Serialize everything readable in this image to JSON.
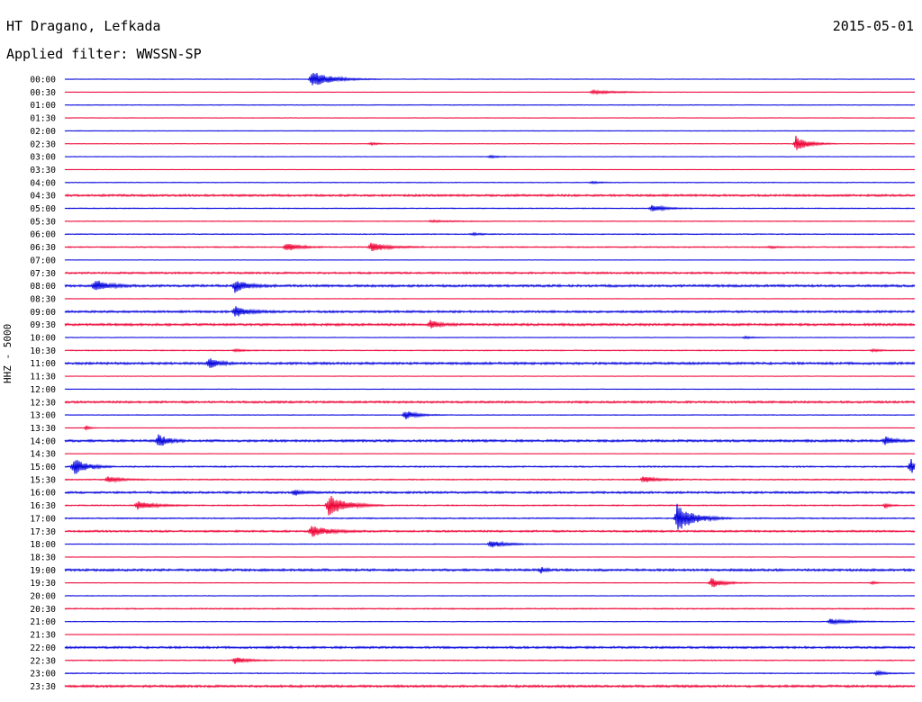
{
  "header": {
    "station": "HT Dragano, Lefkada",
    "date": "2015-05-01",
    "filter_label": "Applied filter: WWSSN-SP"
  },
  "channel_label": "HHZ - 5000",
  "colors": {
    "even": "#0000dd",
    "odd": "#ee0033"
  },
  "chart_data": {
    "type": "line",
    "title": "HT Dragano, Lefkada",
    "subtitle": "Applied filter: WWSSN-SP",
    "ylabel": "HHZ - 5000",
    "grid": false,
    "rows": [
      {
        "time": "00:00",
        "noise": 0.25,
        "events": [
          {
            "t": 0.29,
            "amp": 9,
            "dur": 0.05
          }
        ]
      },
      {
        "time": "00:30",
        "noise": 0.2,
        "events": [
          {
            "t": 0.62,
            "amp": 2,
            "dur": 0.07
          }
        ]
      },
      {
        "time": "01:00",
        "noise": 0.3,
        "events": []
      },
      {
        "time": "01:30",
        "noise": 0.2,
        "events": []
      },
      {
        "time": "02:00",
        "noise": 0.25,
        "events": []
      },
      {
        "time": "02:30",
        "noise": 0.2,
        "events": [
          {
            "t": 0.36,
            "amp": 1.5,
            "dur": 0.02
          },
          {
            "t": 0.86,
            "amp": 9,
            "dur": 0.03
          }
        ]
      },
      {
        "time": "03:00",
        "noise": 0.25,
        "events": [
          {
            "t": 0.5,
            "amp": 1.5,
            "dur": 0.02
          }
        ]
      },
      {
        "time": "03:30",
        "noise": 0.2,
        "events": []
      },
      {
        "time": "04:00",
        "noise": 0.3,
        "events": [
          {
            "t": 0.62,
            "amp": 1.5,
            "dur": 0.02
          }
        ]
      },
      {
        "time": "04:30",
        "noise": 0.9,
        "events": []
      },
      {
        "time": "05:00",
        "noise": 0.4,
        "events": [
          {
            "t": 0.69,
            "amp": 4,
            "dur": 0.03
          }
        ]
      },
      {
        "time": "05:30",
        "noise": 0.3,
        "events": [
          {
            "t": 0.43,
            "amp": 1,
            "dur": 0.06
          }
        ]
      },
      {
        "time": "06:00",
        "noise": 0.4,
        "events": [
          {
            "t": 0.48,
            "amp": 1.5,
            "dur": 0.02
          }
        ]
      },
      {
        "time": "06:30",
        "noise": 0.5,
        "events": [
          {
            "t": 0.26,
            "amp": 5,
            "dur": 0.03
          },
          {
            "t": 0.36,
            "amp": 5,
            "dur": 0.04
          },
          {
            "t": 0.83,
            "amp": 1,
            "dur": 0.02
          }
        ]
      },
      {
        "time": "07:00",
        "noise": 0.2,
        "events": []
      },
      {
        "time": "07:30",
        "noise": 0.8,
        "events": []
      },
      {
        "time": "08:00",
        "noise": 1,
        "events": [
          {
            "t": 0.035,
            "amp": 7,
            "dur": 0.03
          },
          {
            "t": 0.2,
            "amp": 7,
            "dur": 0.03
          }
        ]
      },
      {
        "time": "08:30",
        "noise": 0.25,
        "events": []
      },
      {
        "time": "09:00",
        "noise": 0.9,
        "events": [
          {
            "t": 0.2,
            "amp": 6,
            "dur": 0.03
          }
        ]
      },
      {
        "time": "09:30",
        "noise": 1,
        "events": [
          {
            "t": 0.43,
            "amp": 5,
            "dur": 0.02
          }
        ]
      },
      {
        "time": "10:00",
        "noise": 0.25,
        "events": [
          {
            "t": 0.8,
            "amp": 1.5,
            "dur": 0.02
          }
        ]
      },
      {
        "time": "10:30",
        "noise": 0.4,
        "events": [
          {
            "t": 0.2,
            "amp": 1.5,
            "dur": 0.02
          },
          {
            "t": 0.95,
            "amp": 1.5,
            "dur": 0.02
          }
        ]
      },
      {
        "time": "11:00",
        "noise": 1,
        "events": [
          {
            "t": 0.17,
            "amp": 7,
            "dur": 0.02
          }
        ]
      },
      {
        "time": "11:30",
        "noise": 0.2,
        "events": []
      },
      {
        "time": "12:00",
        "noise": 0.25,
        "events": []
      },
      {
        "time": "12:30",
        "noise": 0.9,
        "events": []
      },
      {
        "time": "13:00",
        "noise": 0.3,
        "events": [
          {
            "t": 0.4,
            "amp": 5,
            "dur": 0.03
          }
        ]
      },
      {
        "time": "13:30",
        "noise": 0.2,
        "events": [
          {
            "t": 0.025,
            "amp": 3,
            "dur": 0.01
          }
        ]
      },
      {
        "time": "14:00",
        "noise": 1,
        "events": [
          {
            "t": 0.11,
            "amp": 8,
            "dur": 0.02
          },
          {
            "t": 0.965,
            "amp": 5,
            "dur": 0.02
          }
        ]
      },
      {
        "time": "14:30",
        "noise": 0.2,
        "events": []
      },
      {
        "time": "15:00",
        "noise": 0.6,
        "events": [
          {
            "t": 0.01,
            "amp": 10,
            "dur": 0.03
          },
          {
            "t": 0.995,
            "amp": 10,
            "dur": 0.01
          }
        ]
      },
      {
        "time": "15:30",
        "noise": 0.5,
        "events": [
          {
            "t": 0.05,
            "amp": 4,
            "dur": 0.03
          },
          {
            "t": 0.68,
            "amp": 4,
            "dur": 0.03
          }
        ]
      },
      {
        "time": "16:00",
        "noise": 0.9,
        "events": [
          {
            "t": 0.27,
            "amp": 3,
            "dur": 0.02
          }
        ]
      },
      {
        "time": "16:30",
        "noise": 0.5,
        "events": [
          {
            "t": 0.085,
            "amp": 5,
            "dur": 0.04
          },
          {
            "t": 0.31,
            "amp": 13,
            "dur": 0.04
          },
          {
            "t": 0.965,
            "amp": 3,
            "dur": 0.01
          }
        ]
      },
      {
        "time": "17:00",
        "noise": 0.5,
        "events": [
          {
            "t": 0.72,
            "amp": 16,
            "dur": 0.04
          }
        ]
      },
      {
        "time": "17:30",
        "noise": 0.8,
        "events": [
          {
            "t": 0.29,
            "amp": 6,
            "dur": 0.04
          }
        ]
      },
      {
        "time": "18:00",
        "noise": 0.3,
        "events": [
          {
            "t": 0.5,
            "amp": 4,
            "dur": 0.04
          }
        ]
      },
      {
        "time": "18:30",
        "noise": 0.2,
        "events": []
      },
      {
        "time": "19:00",
        "noise": 1,
        "events": [
          {
            "t": 0.56,
            "amp": 3,
            "dur": 0.01
          }
        ]
      },
      {
        "time": "19:30",
        "noise": 0.25,
        "events": [
          {
            "t": 0.76,
            "amp": 6,
            "dur": 0.03
          },
          {
            "t": 0.95,
            "amp": 2,
            "dur": 0.01
          }
        ]
      },
      {
        "time": "20:00",
        "noise": 0.3,
        "events": []
      },
      {
        "time": "20:30",
        "noise": 0.5,
        "events": []
      },
      {
        "time": "21:00",
        "noise": 0.3,
        "events": [
          {
            "t": 0.9,
            "amp": 3,
            "dur": 0.05
          }
        ]
      },
      {
        "time": "21:30",
        "noise": 0.2,
        "events": []
      },
      {
        "time": "22:00",
        "noise": 0.9,
        "events": []
      },
      {
        "time": "22:30",
        "noise": 0.4,
        "events": [
          {
            "t": 0.2,
            "amp": 4,
            "dur": 0.03
          }
        ]
      },
      {
        "time": "23:00",
        "noise": 0.4,
        "events": [
          {
            "t": 0.955,
            "amp": 3,
            "dur": 0.02
          }
        ]
      },
      {
        "time": "23:30",
        "noise": 1,
        "events": []
      }
    ]
  }
}
